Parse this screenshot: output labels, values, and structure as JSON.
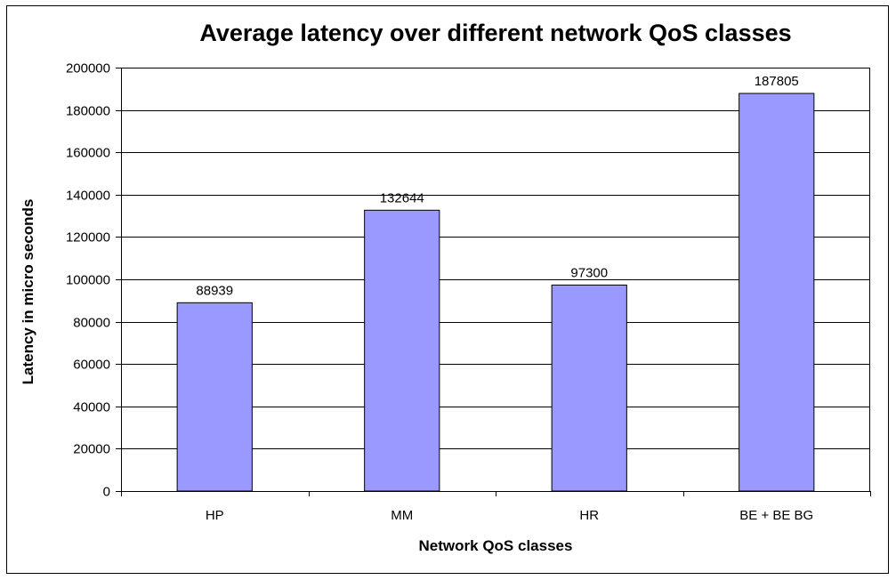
{
  "chart_data": {
    "type": "bar",
    "title": "Average latency over different network QoS classes",
    "xlabel": "Network QoS classes",
    "ylabel": "Latency in micro seconds",
    "categories": [
      "HP",
      "MM",
      "HR",
      "BE + BE BG"
    ],
    "values": [
      88939,
      132644,
      97300,
      187805
    ],
    "data_labels": [
      "88939",
      "132644",
      "97300",
      "187805"
    ],
    "ylim": [
      0,
      200000
    ],
    "yticks": [
      0,
      20000,
      40000,
      60000,
      80000,
      100000,
      120000,
      140000,
      160000,
      180000,
      200000
    ],
    "ytick_labels": [
      "0",
      "20000",
      "40000",
      "60000",
      "80000",
      "100000",
      "120000",
      "140000",
      "160000",
      "180000",
      "200000"
    ],
    "grid": true,
    "legend": false,
    "colors": {
      "bar_fill": "#9999ff",
      "bar_stroke": "#000000",
      "grid": "#000000",
      "frame": "#000000",
      "background": "#ffffff"
    }
  }
}
